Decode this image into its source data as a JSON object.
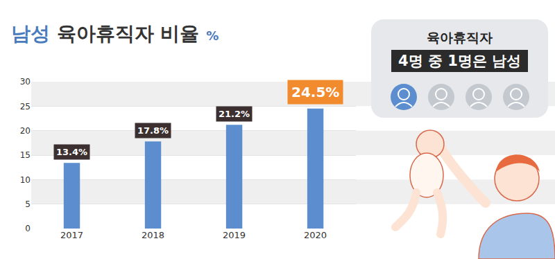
{
  "chart_data": {
    "type": "bar",
    "title": "남성 육아휴직자 비율 %",
    "categories": [
      "2017",
      "2018",
      "2019",
      "2020"
    ],
    "values": [
      13.4,
      17.8,
      21.2,
      24.5
    ],
    "value_labels": [
      "13.4%",
      "17.8%",
      "21.2%",
      "24.5%"
    ],
    "color": "#5b8dcf",
    "ylim": [
      0,
      30
    ],
    "yticks": [
      0,
      5,
      10,
      15,
      20,
      25,
      30
    ],
    "grid": true,
    "data_labels": true,
    "annotations": [
      "육아휴직자",
      "4명 중 1명은 남성"
    ]
  }
}
